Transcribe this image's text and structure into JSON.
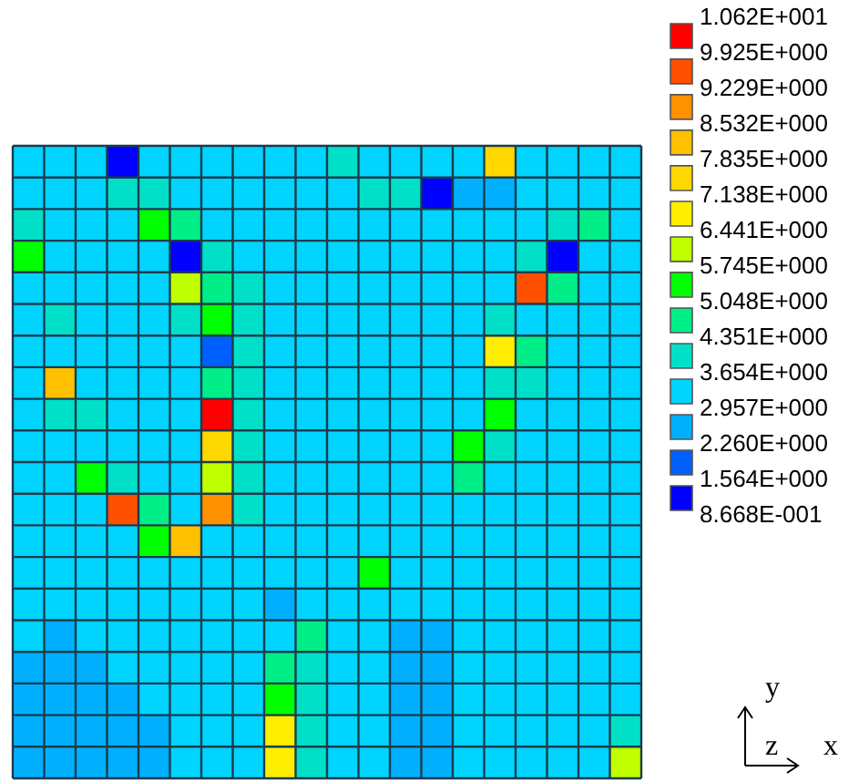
{
  "chart_data": {
    "type": "heatmap",
    "categories": [
      null,
      null,
      null,
      null,
      null,
      null,
      null,
      null,
      null,
      null,
      null,
      null,
      null,
      null,
      null,
      null,
      null,
      null,
      null,
      null
    ],
    "y_categories": [
      null,
      null,
      null,
      null,
      null,
      null,
      null,
      null,
      null,
      null,
      null,
      null,
      null,
      null,
      null,
      null,
      null,
      null,
      null,
      null
    ],
    "cells": [
      [
        3.3,
        3.3,
        3.3,
        1.2,
        3.3,
        3.3,
        3.3,
        3.3,
        3.3,
        3.3,
        4.0,
        3.3,
        3.3,
        3.3,
        3.3,
        7.5,
        3.3,
        3.3,
        3.3,
        3.3
      ],
      [
        3.3,
        3.3,
        3.3,
        4.0,
        4.0,
        3.3,
        3.3,
        3.3,
        3.3,
        3.3,
        3.3,
        4.0,
        4.0,
        1.2,
        2.6,
        2.6,
        3.3,
        3.3,
        3.3,
        3.3
      ],
      [
        4.0,
        3.3,
        3.3,
        3.3,
        5.4,
        4.7,
        3.3,
        3.3,
        3.3,
        3.3,
        3.3,
        3.3,
        3.3,
        3.3,
        3.3,
        3.3,
        3.3,
        4.0,
        4.7,
        3.3
      ],
      [
        5.4,
        3.3,
        3.3,
        3.3,
        3.3,
        1.2,
        4.0,
        3.3,
        3.3,
        3.3,
        3.3,
        3.3,
        3.3,
        3.3,
        3.3,
        3.3,
        4.0,
        1.2,
        3.3,
        3.3
      ],
      [
        3.3,
        3.3,
        3.3,
        3.3,
        3.3,
        6.1,
        4.7,
        4.0,
        3.3,
        3.3,
        3.3,
        3.3,
        3.3,
        3.3,
        3.3,
        3.3,
        9.6,
        4.7,
        3.3,
        3.3
      ],
      [
        3.3,
        4.0,
        3.3,
        3.3,
        3.3,
        4.0,
        5.4,
        4.0,
        3.3,
        3.3,
        3.3,
        3.3,
        3.3,
        3.3,
        3.3,
        4.0,
        3.3,
        3.3,
        3.3,
        3.3
      ],
      [
        3.3,
        3.3,
        3.3,
        3.3,
        3.3,
        3.3,
        1.9,
        4.0,
        3.3,
        3.3,
        3.3,
        3.3,
        3.3,
        3.3,
        3.3,
        6.8,
        4.7,
        3.3,
        3.3,
        3.3
      ],
      [
        3.3,
        8.2,
        3.3,
        3.3,
        3.3,
        3.3,
        4.7,
        4.0,
        3.3,
        3.3,
        3.3,
        3.3,
        3.3,
        3.3,
        3.3,
        4.0,
        4.0,
        3.3,
        3.3,
        3.3
      ],
      [
        3.3,
        4.0,
        4.0,
        3.3,
        3.3,
        3.3,
        10.3,
        4.0,
        3.3,
        3.3,
        3.3,
        3.3,
        3.3,
        3.3,
        3.3,
        5.4,
        3.3,
        3.3,
        3.3,
        3.3
      ],
      [
        3.3,
        3.3,
        3.3,
        3.3,
        3.3,
        3.3,
        7.5,
        4.0,
        3.3,
        3.3,
        3.3,
        3.3,
        3.3,
        3.3,
        5.4,
        4.0,
        3.3,
        3.3,
        3.3,
        3.3
      ],
      [
        3.3,
        3.3,
        5.4,
        4.0,
        3.3,
        3.3,
        6.1,
        4.0,
        3.3,
        3.3,
        3.3,
        3.3,
        3.3,
        3.3,
        4.7,
        3.3,
        3.3,
        3.3,
        3.3,
        3.3
      ],
      [
        3.3,
        3.3,
        3.3,
        9.6,
        4.7,
        3.3,
        8.9,
        4.0,
        3.3,
        3.3,
        3.3,
        3.3,
        3.3,
        3.3,
        3.3,
        3.3,
        3.3,
        3.3,
        3.3,
        3.3
      ],
      [
        3.3,
        3.3,
        3.3,
        3.3,
        5.4,
        8.2,
        3.3,
        3.3,
        3.3,
        3.3,
        3.3,
        3.3,
        3.3,
        3.3,
        3.3,
        3.3,
        3.3,
        3.3,
        3.3,
        3.3
      ],
      [
        3.3,
        3.3,
        3.3,
        3.3,
        3.3,
        3.3,
        3.3,
        3.3,
        3.3,
        3.3,
        3.3,
        5.4,
        3.3,
        3.3,
        3.3,
        3.3,
        3.3,
        3.3,
        3.3,
        3.3
      ],
      [
        3.3,
        3.3,
        3.3,
        3.3,
        3.3,
        3.3,
        3.3,
        3.3,
        2.6,
        3.3,
        3.3,
        3.3,
        3.3,
        3.3,
        3.3,
        3.3,
        3.3,
        3.3,
        3.3,
        3.3
      ],
      [
        3.3,
        2.6,
        3.3,
        3.3,
        3.3,
        3.3,
        3.3,
        3.3,
        3.3,
        4.7,
        3.3,
        3.3,
        2.6,
        2.6,
        3.3,
        3.3,
        3.3,
        3.3,
        3.3,
        3.3
      ],
      [
        2.6,
        2.6,
        2.6,
        3.3,
        3.3,
        3.3,
        3.3,
        3.3,
        4.7,
        4.0,
        3.3,
        3.3,
        2.6,
        2.6,
        3.3,
        3.3,
        3.3,
        3.3,
        3.3,
        3.3
      ],
      [
        2.6,
        2.6,
        2.6,
        2.6,
        3.3,
        3.3,
        3.3,
        3.3,
        5.4,
        4.0,
        3.3,
        3.3,
        2.6,
        2.6,
        3.3,
        3.3,
        3.3,
        3.3,
        3.3,
        3.3
      ],
      [
        2.6,
        2.6,
        2.6,
        2.6,
        2.6,
        3.3,
        3.3,
        3.3,
        6.8,
        4.0,
        3.3,
        3.3,
        2.6,
        2.6,
        3.3,
        3.3,
        3.3,
        3.3,
        3.3,
        4.0
      ],
      [
        2.6,
        2.6,
        2.6,
        2.6,
        2.6,
        3.3,
        3.3,
        3.3,
        6.8,
        4.0,
        3.3,
        3.3,
        2.6,
        2.6,
        3.3,
        3.3,
        3.3,
        3.3,
        3.3,
        6.1
      ]
    ],
    "clim": [
      0.8668,
      10.62
    ],
    "cticks": [
      {
        "value": 0.8668,
        "label": "8.668E-001"
      },
      {
        "value": 1.564,
        "label": "1.564E+000"
      },
      {
        "value": 2.26,
        "label": "2.260E+000"
      },
      {
        "value": 2.957,
        "label": "2.957E+000"
      },
      {
        "value": 3.654,
        "label": "3.654E+000"
      },
      {
        "value": 4.351,
        "label": "4.351E+000"
      },
      {
        "value": 5.048,
        "label": "5.048E+000"
      },
      {
        "value": 5.745,
        "label": "5.745E+000"
      },
      {
        "value": 6.441,
        "label": "6.441E+000"
      },
      {
        "value": 7.138,
        "label": "7.138E+000"
      },
      {
        "value": 7.835,
        "label": "7.835E+000"
      },
      {
        "value": 8.532,
        "label": "8.532E+000"
      },
      {
        "value": 9.229,
        "label": "9.229E+000"
      },
      {
        "value": 9.925,
        "label": "9.925E+000"
      },
      {
        "value": 10.62,
        "label": "1.062E+001"
      }
    ],
    "annotations": [
      "y",
      "z",
      "x"
    ]
  }
}
